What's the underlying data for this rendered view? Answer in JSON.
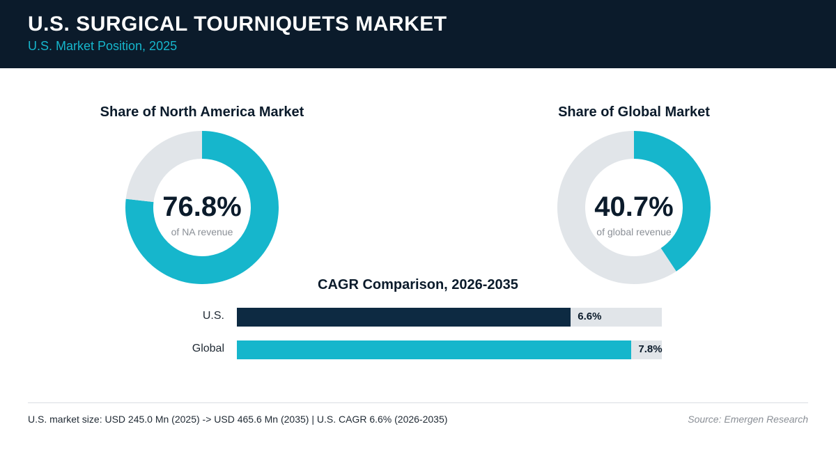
{
  "header": {
    "title": "U.S. SURGICAL TOURNIQUETS MARKET",
    "subtitle": "U.S. Market Position, 2025"
  },
  "colors": {
    "header_bg": "#0b1b2b",
    "accent": "#16b6cc",
    "navy": "#0d2a42",
    "track": "#e1e5e9"
  },
  "chart_data": [
    {
      "type": "pie",
      "title": "Share of North America Market",
      "values": [
        76.8,
        23.2
      ],
      "value_label": "76.8%",
      "caption": "of NA revenue"
    },
    {
      "type": "pie",
      "title": "Share of Global Market",
      "values": [
        40.7,
        59.3
      ],
      "value_label": "40.7%",
      "caption": "of global revenue"
    },
    {
      "type": "bar",
      "title": "CAGR Comparison, 2026-2035",
      "categories": [
        "U.S.",
        "Global"
      ],
      "values": [
        6.6,
        7.8
      ],
      "value_labels": [
        "6.6%",
        "7.8%"
      ],
      "xlim": [
        0,
        8.4
      ]
    }
  ],
  "footer": {
    "summary": "U.S. market size: USD 245.0 Mn (2025) -> USD 465.6 Mn (2035)  |  U.S. CAGR 6.6% (2026-2035)",
    "source": "Source: Emergen Research"
  }
}
